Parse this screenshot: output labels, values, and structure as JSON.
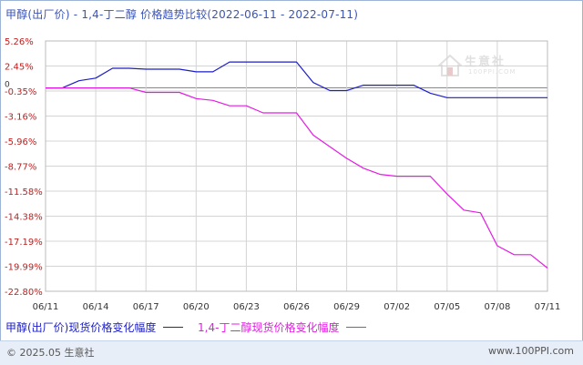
{
  "header": {
    "title": "甲醇(出厂价) - 1,4-丁二醇 价格趋势比较(2022-06-11 - 2022-07-11)"
  },
  "legend": {
    "series1_label": "甲醇(出厂价)现货价格变化幅度",
    "series2_label": "1,4-丁二醇现货价格变化幅度"
  },
  "footer": {
    "copyright": "© 2025.05 生意社",
    "website": "www.100PPI.com"
  },
  "watermark": {
    "text": "生意社",
    "sub": "100PPI.COM"
  },
  "colors": {
    "series1": "#1d1ec8",
    "series2": "#e31ce3",
    "axis_text": "#c02020",
    "x_text": "#333333",
    "grid": "#d4d4d4"
  },
  "chart_data": {
    "type": "line",
    "title": "甲醇(出厂价) - 1,4-丁二醇 价格趋势比较(2022-06-11 - 2022-07-11)",
    "y_ticks": [
      "5.26%",
      "2.45%",
      "-0.35%",
      "-3.16%",
      "-5.96%",
      "-8.77%",
      "-11.58%",
      "-14.38%",
      "-17.19%",
      "-19.99%",
      "-22.80%"
    ],
    "y_tick_values": [
      5.26,
      2.45,
      -0.35,
      -3.16,
      -5.96,
      -8.77,
      -11.58,
      -14.38,
      -17.19,
      -19.99,
      -22.8
    ],
    "zero_label": "0",
    "ylim": [
      -22.8,
      5.26
    ],
    "x_ticks": [
      "06/11",
      "06/14",
      "06/17",
      "06/20",
      "06/23",
      "06/26",
      "06/29",
      "07/02",
      "07/05",
      "07/08",
      "07/11"
    ],
    "x_tick_days": [
      0,
      3,
      6,
      9,
      12,
      15,
      18,
      21,
      24,
      27,
      30
    ],
    "series": [
      {
        "name": "甲醇(出厂价)现货价格变化幅度",
        "color": "#1d1ec8",
        "points": [
          [
            0,
            0
          ],
          [
            1,
            0
          ],
          [
            2,
            0.8
          ],
          [
            3,
            1.1
          ],
          [
            4,
            2.2
          ],
          [
            5,
            2.2
          ],
          [
            6,
            2.1
          ],
          [
            7,
            2.1
          ],
          [
            8,
            2.1
          ],
          [
            9,
            1.8
          ],
          [
            10,
            1.8
          ],
          [
            11,
            2.9
          ],
          [
            12,
            2.9
          ],
          [
            13,
            2.9
          ],
          [
            14,
            2.9
          ],
          [
            15,
            2.9
          ],
          [
            16,
            0.6
          ],
          [
            17,
            -0.3
          ],
          [
            18,
            -0.3
          ],
          [
            19,
            0.3
          ],
          [
            20,
            0.3
          ],
          [
            21,
            0.3
          ],
          [
            22,
            0.3
          ],
          [
            23,
            -0.6
          ],
          [
            24,
            -1.1
          ],
          [
            25,
            -1.1
          ],
          [
            26,
            -1.1
          ],
          [
            27,
            -1.1
          ],
          [
            28,
            -1.1
          ],
          [
            29,
            -1.1
          ],
          [
            30,
            -1.1
          ]
        ]
      },
      {
        "name": "1,4-丁二醇现货价格变化幅度",
        "color": "#e31ce3",
        "points": [
          [
            0,
            0
          ],
          [
            1,
            0
          ],
          [
            2,
            0
          ],
          [
            3,
            0
          ],
          [
            4,
            0
          ],
          [
            5,
            0
          ],
          [
            6,
            -0.5
          ],
          [
            7,
            -0.5
          ],
          [
            8,
            -0.5
          ],
          [
            9,
            -1.2
          ],
          [
            10,
            -1.4
          ],
          [
            11,
            -2.0
          ],
          [
            12,
            -2.0
          ],
          [
            13,
            -2.8
          ],
          [
            14,
            -2.8
          ],
          [
            15,
            -2.8
          ],
          [
            16,
            -5.3
          ],
          [
            17,
            -6.6
          ],
          [
            18,
            -7.9
          ],
          [
            19,
            -9.0
          ],
          [
            20,
            -9.7
          ],
          [
            21,
            -9.9
          ],
          [
            22,
            -9.9
          ],
          [
            23,
            -9.9
          ],
          [
            24,
            -11.9
          ],
          [
            25,
            -13.7
          ],
          [
            26,
            -14.0
          ],
          [
            27,
            -17.7
          ],
          [
            28,
            -18.7
          ],
          [
            29,
            -18.7
          ],
          [
            30,
            -20.2
          ]
        ]
      }
    ]
  }
}
